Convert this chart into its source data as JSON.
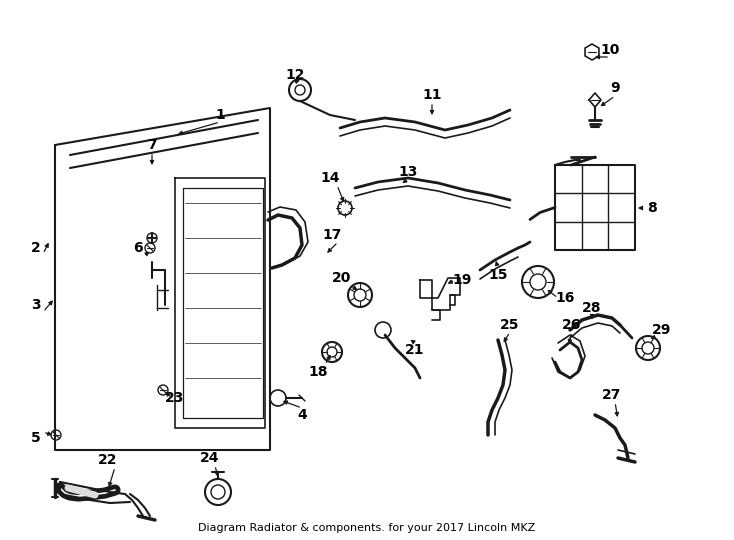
{
  "title": "Diagram Radiator & components. for your 2017 Lincoln MKZ",
  "bg": "#ffffff",
  "lc": "#1a1a1a",
  "tc": "#000000",
  "figsize": [
    7.34,
    5.4
  ],
  "dpi": 100
}
